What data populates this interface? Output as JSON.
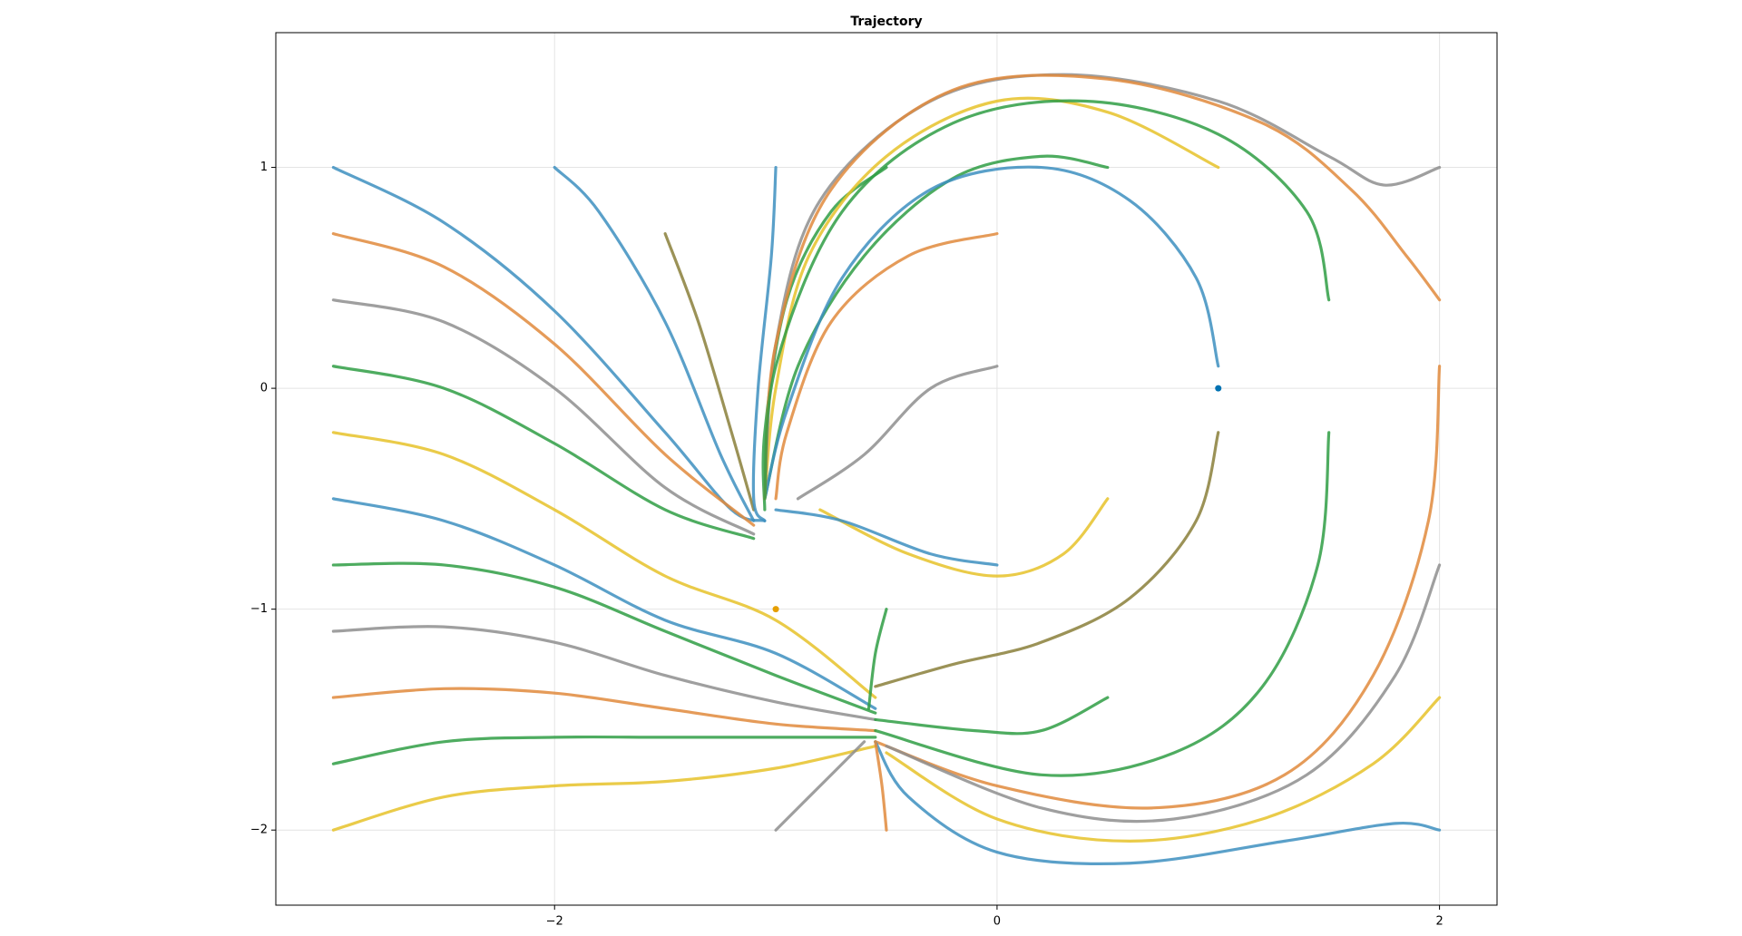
{
  "chart_data": {
    "type": "line",
    "title": "Trajectory",
    "xlim": [
      -3.26,
      2.26
    ],
    "ylim": [
      -2.34,
      1.61
    ],
    "xticks": [
      {
        "value": -2,
        "label": "−2"
      },
      0,
      2
    ],
    "yticks": [
      {
        "value": -2,
        "label": "−2"
      },
      {
        "value": -1,
        "label": "−1"
      },
      0,
      1
    ],
    "grid": true,
    "series": [
      {
        "color": "#3d8fbf",
        "x": [
          -3,
          -2.5,
          -2,
          -1.5,
          -1.2,
          -1.05
        ],
        "y": [
          1,
          0.75,
          0.35,
          -0.2,
          -0.55,
          -0.6
        ]
      },
      {
        "color": "#e08a3c",
        "x": [
          -3,
          -2.5,
          -2,
          -1.5,
          -1.1
        ],
        "y": [
          0.7,
          0.55,
          0.2,
          -0.3,
          -0.62
        ]
      },
      {
        "color": "#8e8e8e",
        "x": [
          -3,
          -2.5,
          -2,
          -1.5,
          -1.1
        ],
        "y": [
          0.4,
          0.3,
          0.0,
          -0.45,
          -0.66
        ]
      },
      {
        "color": "#2f9e44",
        "x": [
          -3,
          -2.5,
          -2,
          -1.5,
          -1.1
        ],
        "y": [
          0.1,
          0.0,
          -0.25,
          -0.55,
          -0.68
        ]
      },
      {
        "color": "#e6c229",
        "x": [
          -3,
          -2.5,
          -2,
          -1.5,
          -1,
          -0.55
        ],
        "y": [
          -0.2,
          -0.3,
          -0.55,
          -0.85,
          -1.05,
          -1.4
        ]
      },
      {
        "color": "#3d8fbf",
        "x": [
          -3,
          -2.5,
          -2,
          -1.5,
          -1,
          -0.55
        ],
        "y": [
          -0.5,
          -0.6,
          -0.8,
          -1.05,
          -1.2,
          -1.45
        ]
      },
      {
        "color": "#2f9e44",
        "x": [
          -3,
          -2.5,
          -2,
          -1.5,
          -1,
          -0.55
        ],
        "y": [
          -0.8,
          -0.8,
          -0.9,
          -1.1,
          -1.3,
          -1.47
        ]
      },
      {
        "color": "#8e8e8e",
        "x": [
          -3,
          -2.5,
          -2,
          -1.5,
          -1,
          -0.55
        ],
        "y": [
          -1.1,
          -1.08,
          -1.15,
          -1.3,
          -1.42,
          -1.5
        ]
      },
      {
        "color": "#e08a3c",
        "x": [
          -3,
          -2.5,
          -2,
          -1.5,
          -1,
          -0.55
        ],
        "y": [
          -1.4,
          -1.36,
          -1.38,
          -1.45,
          -1.52,
          -1.55
        ]
      },
      {
        "color": "#2f9e44",
        "x": [
          -3,
          -2.5,
          -2,
          -1.5,
          -1,
          -0.55
        ],
        "y": [
          -1.7,
          -1.6,
          -1.58,
          -1.58,
          -1.58,
          -1.58
        ]
      },
      {
        "color": "#e6c229",
        "x": [
          -3,
          -2.5,
          -2,
          -1.5,
          -1,
          -0.55
        ],
        "y": [
          -2,
          -1.85,
          -1.8,
          -1.78,
          -1.72,
          -1.62
        ]
      },
      {
        "color": "#3d8fbf",
        "x": [
          -2,
          -1.8,
          -1.5,
          -1.25,
          -1.1
        ],
        "y": [
          1,
          0.8,
          0.3,
          -0.3,
          -0.6
        ]
      },
      {
        "color": "#8a7f3a",
        "x": [
          -1.5,
          -1.35,
          -1.2,
          -1.1
        ],
        "y": [
          0.7,
          0.3,
          -0.2,
          -0.55
        ]
      },
      {
        "color": "#3d8fbf",
        "x": [
          -1,
          -1.02,
          -1.08,
          -1.1,
          -1.05
        ],
        "y": [
          1,
          0.6,
          0,
          -0.5,
          -0.6
        ]
      },
      {
        "color": "#2f9e44",
        "x": [
          -0.5,
          -0.75,
          -0.95,
          -1.05,
          -1.05
        ],
        "y": [
          1,
          0.8,
          0.4,
          -0.2,
          -0.55
        ]
      },
      {
        "color": "#e08a3c",
        "x": [
          0,
          -0.4,
          -0.75,
          -0.95,
          -1
        ],
        "y": [
          0.7,
          0.6,
          0.3,
          -0.2,
          -0.5
        ]
      },
      {
        "color": "#8e8e8e",
        "x": [
          0,
          -0.3,
          -0.6,
          -0.9
        ],
        "y": [
          0.1,
          0.0,
          -0.3,
          -0.5
        ]
      },
      {
        "color": "#2f9e44",
        "x": [
          0.5,
          0.2,
          -0.2,
          -0.6,
          -0.9,
          -1.05
        ],
        "y": [
          1,
          1.05,
          0.95,
          0.6,
          0.1,
          -0.5
        ]
      },
      {
        "color": "#e6c229",
        "x": [
          1,
          0.5,
          0,
          -0.5,
          -0.85,
          -1.0,
          -1.05
        ],
        "y": [
          1,
          1.25,
          1.3,
          1.05,
          0.6,
          0,
          -0.5
        ]
      },
      {
        "color": "#3d8fbf",
        "x": [
          1,
          0.9,
          0.6,
          0.2,
          -0.3,
          -0.7,
          -0.95,
          -1.05
        ],
        "y": [
          0.1,
          0.5,
          0.85,
          1.0,
          0.9,
          0.5,
          -0.1,
          -0.5
        ]
      },
      {
        "color": "#8e8e8e",
        "x": [
          2,
          1.75,
          1.5,
          1,
          0.3,
          -0.3,
          -0.8,
          -1.0,
          -1.05
        ],
        "y": [
          1,
          0.92,
          1.05,
          1.3,
          1.42,
          1.3,
          0.85,
          0.2,
          -0.5
        ]
      },
      {
        "color": "#e08a3c",
        "x": [
          2,
          1.85,
          1.6,
          1.2,
          0.5,
          -0.2,
          -0.75,
          -1.0,
          -1.05
        ],
        "y": [
          0.4,
          0.6,
          0.9,
          1.2,
          1.4,
          1.35,
          0.9,
          0.2,
          -0.5
        ]
      },
      {
        "color": "#2f9e44",
        "x": [
          1.5,
          1.4,
          1.0,
          0.4,
          -0.2,
          -0.7,
          -1.0,
          -1.05
        ],
        "y": [
          0.4,
          0.8,
          1.15,
          1.3,
          1.2,
          0.8,
          0.1,
          -0.5
        ]
      },
      {
        "color": "#e6c229",
        "x": [
          0.5,
          0.3,
          0,
          -0.4,
          -0.8
        ],
        "y": [
          -0.5,
          -0.75,
          -0.85,
          -0.75,
          -0.55
        ]
      },
      {
        "color": "#3d8fbf",
        "x": [
          0,
          -0.3,
          -0.7,
          -1
        ],
        "y": [
          -0.8,
          -0.75,
          -0.6,
          -0.55
        ]
      },
      {
        "color": "#8a7f3a",
        "x": [
          1,
          0.9,
          0.6,
          0.2,
          -0.2,
          -0.55
        ],
        "y": [
          -0.2,
          -0.6,
          -0.95,
          -1.15,
          -1.25,
          -1.35
        ]
      },
      {
        "color": "#2f9e44",
        "x": [
          1.5,
          1.45,
          1.2,
          0.8,
          0.2,
          -0.55
        ],
        "y": [
          -0.2,
          -0.8,
          -1.35,
          -1.65,
          -1.75,
          -1.55
        ]
      },
      {
        "color": "#e08a3c",
        "x": [
          2,
          1.95,
          1.7,
          1.3,
          0.7,
          0,
          -0.55
        ],
        "y": [
          0.1,
          -0.6,
          -1.3,
          -1.75,
          -1.9,
          -1.8,
          -1.6
        ]
      },
      {
        "color": "#8e8e8e",
        "x": [
          2,
          1.8,
          1.4,
          0.8,
          0.2,
          -0.5
        ],
        "y": [
          -0.8,
          -1.3,
          -1.75,
          -1.95,
          -1.9,
          -1.62
        ]
      },
      {
        "color": "#e6c229",
        "x": [
          2,
          1.7,
          1.2,
          0.6,
          0,
          -0.5
        ],
        "y": [
          -1.4,
          -1.7,
          -1.95,
          -2.05,
          -1.95,
          -1.65
        ]
      },
      {
        "color": "#3d8fbf",
        "x": [
          2,
          1.8,
          1.3,
          0.6,
          0,
          -0.4,
          -0.55
        ],
        "y": [
          -2,
          -1.97,
          -2.05,
          -2.15,
          -2.1,
          -1.85,
          -1.6
        ]
      },
      {
        "color": "#2f9e44",
        "x": [
          0.5,
          0.2,
          -0.1,
          -0.55
        ],
        "y": [
          -1.4,
          -1.55,
          -1.55,
          -1.5
        ]
      },
      {
        "color": "#e08a3c",
        "x": [
          -0.5,
          -0.52,
          -0.55
        ],
        "y": [
          -2,
          -1.8,
          -1.6
        ]
      },
      {
        "color": "#8e8e8e",
        "x": [
          -1,
          -0.8,
          -0.6
        ],
        "y": [
          -2,
          -1.8,
          -1.6
        ]
      },
      {
        "color": "#2f9e44",
        "x": [
          -0.5,
          -0.55,
          -0.58
        ],
        "y": [
          -1.0,
          -1.2,
          -1.45
        ]
      }
    ],
    "points": [
      {
        "x": 1,
        "y": 0,
        "color": "#0072b2"
      },
      {
        "x": -1,
        "y": -1,
        "color": "#e69f00"
      }
    ]
  }
}
